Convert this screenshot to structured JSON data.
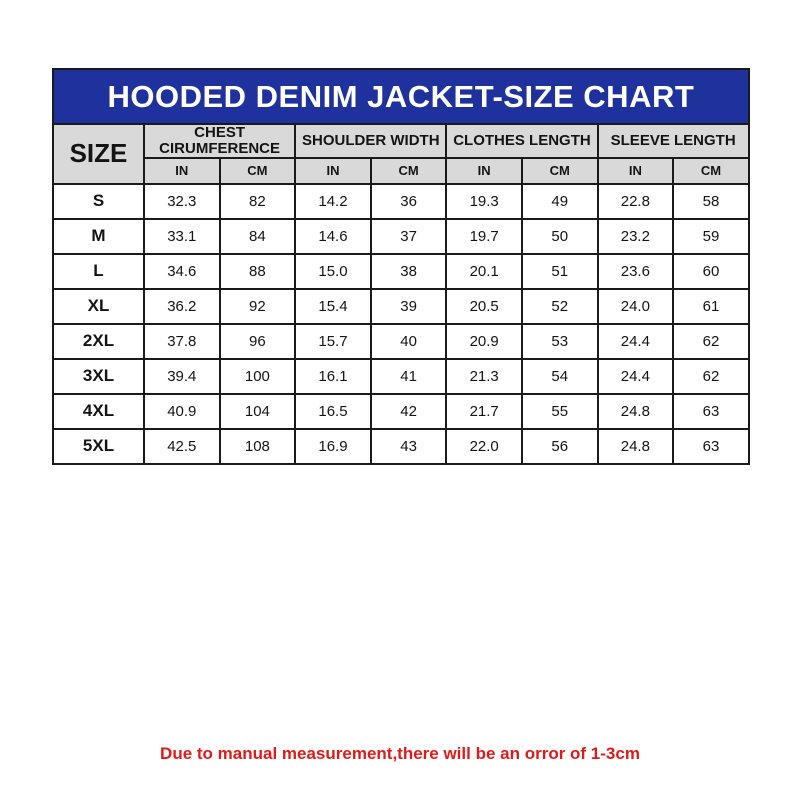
{
  "title": "HOODED DENIM JACKET-SIZE CHART",
  "footnote": "Due to manual measurement,there will be an orror of 1-3cm",
  "colors": {
    "title_bar_bg": "#1e319c",
    "title_text": "#ffffff",
    "header_bg": "#d9d9d9",
    "border": "#1a1a1a",
    "cell_bg": "#ffffff",
    "footnote_text": "#e01a1a"
  },
  "table": {
    "size_header": "SIZE",
    "groups": [
      "CHEST CIRUMFERENCE",
      "SHOULDER WIDTH",
      "CLOTHES LENGTH",
      "SLEEVE LENGTH"
    ],
    "units": [
      "IN",
      "CM"
    ],
    "rows": [
      {
        "size": "S",
        "values": [
          "32.3",
          "82",
          "14.2",
          "36",
          "19.3",
          "49",
          "22.8",
          "58"
        ]
      },
      {
        "size": "M",
        "values": [
          "33.1",
          "84",
          "14.6",
          "37",
          "19.7",
          "50",
          "23.2",
          "59"
        ]
      },
      {
        "size": "L",
        "values": [
          "34.6",
          "88",
          "15.0",
          "38",
          "20.1",
          "51",
          "23.6",
          "60"
        ]
      },
      {
        "size": "XL",
        "values": [
          "36.2",
          "92",
          "15.4",
          "39",
          "20.5",
          "52",
          "24.0",
          "61"
        ]
      },
      {
        "size": "2XL",
        "values": [
          "37.8",
          "96",
          "15.7",
          "40",
          "20.9",
          "53",
          "24.4",
          "62"
        ]
      },
      {
        "size": "3XL",
        "values": [
          "39.4",
          "100",
          "16.1",
          "41",
          "21.3",
          "54",
          "24.4",
          "62"
        ]
      },
      {
        "size": "4XL",
        "values": [
          "40.9",
          "104",
          "16.5",
          "42",
          "21.7",
          "55",
          "24.8",
          "63"
        ]
      },
      {
        "size": "5XL",
        "values": [
          "42.5",
          "108",
          "16.9",
          "43",
          "22.0",
          "56",
          "24.8",
          "63"
        ]
      }
    ]
  }
}
